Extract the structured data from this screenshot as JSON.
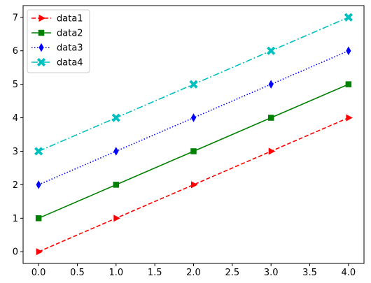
{
  "chart_data": {
    "type": "line",
    "title": "",
    "xlabel": "",
    "ylabel": "",
    "xlim": [
      -0.2,
      4.2
    ],
    "ylim": [
      -0.35,
      7.35
    ],
    "xticks": [
      0.0,
      0.5,
      1.0,
      1.5,
      2.0,
      2.5,
      3.0,
      3.5,
      4.0
    ],
    "xtick_labels": [
      "0.0",
      "0.5",
      "1.0",
      "1.5",
      "2.0",
      "2.5",
      "3.0",
      "3.5",
      "4.0"
    ],
    "yticks": [
      0,
      1,
      2,
      3,
      4,
      5,
      6,
      7
    ],
    "ytick_labels": [
      "0",
      "1",
      "2",
      "3",
      "4",
      "5",
      "6",
      "7"
    ],
    "grid": false,
    "legend_position": "top-left",
    "x": [
      0,
      1,
      2,
      3,
      4
    ],
    "series": [
      {
        "name": "data1",
        "values": [
          0,
          1,
          2,
          3,
          4
        ],
        "color": "#ff0000",
        "line_style": "dashed",
        "marker": "triangle-right"
      },
      {
        "name": "data2",
        "values": [
          1,
          2,
          3,
          4,
          5
        ],
        "color": "#008000",
        "line_style": "solid",
        "marker": "square"
      },
      {
        "name": "data3",
        "values": [
          2,
          3,
          4,
          5,
          6
        ],
        "color": "#0000ff",
        "line_style": "dotted",
        "marker": "thin-diamond"
      },
      {
        "name": "data4",
        "values": [
          3,
          4,
          5,
          6,
          7
        ],
        "color": "#00bfbf",
        "line_style": "dash-dot",
        "marker": "x-filled"
      }
    ]
  }
}
